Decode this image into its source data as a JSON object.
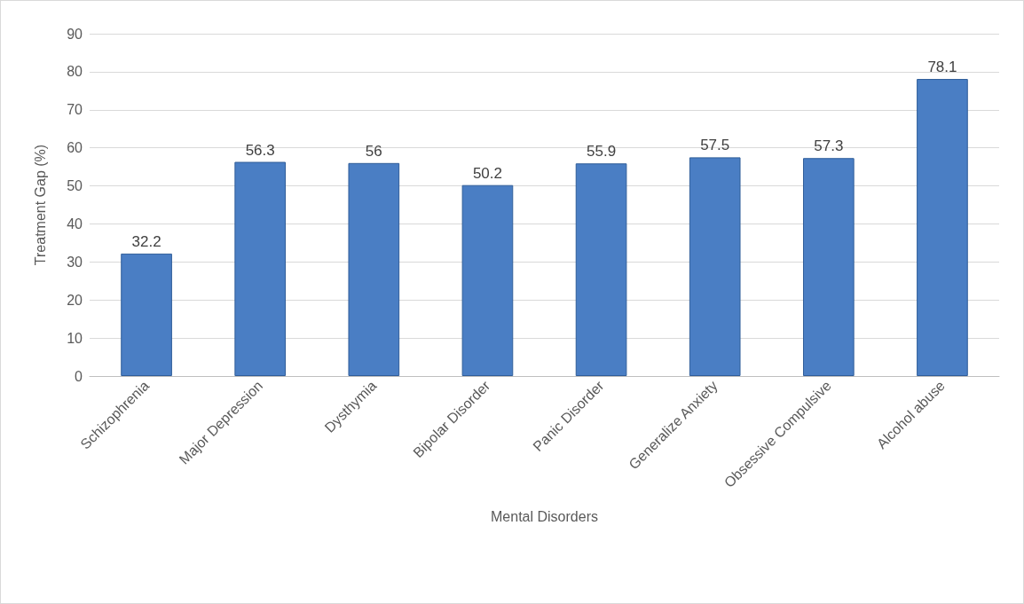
{
  "chart_data": {
    "type": "bar",
    "xlabel": "Mental Disorders",
    "ylabel": "Treatment Gap (%)",
    "categories": [
      "Schizophrenia",
      "Major Depression",
      "Dysthymia",
      "Bipolar Disorder",
      "Panic Disorder",
      "Generalize Anxiety",
      "Obsessive Compulsive",
      "Alcohol abuse"
    ],
    "values": [
      32.2,
      56.3,
      56,
      50.2,
      55.9,
      57.5,
      57.3,
      78.1
    ],
    "color": "#4a7ec4",
    "ylim": [
      0,
      90
    ],
    "yticks": [
      0,
      10,
      20,
      30,
      40,
      50,
      60,
      70,
      80,
      90
    ],
    "grid": "y",
    "data_labels": true
  }
}
